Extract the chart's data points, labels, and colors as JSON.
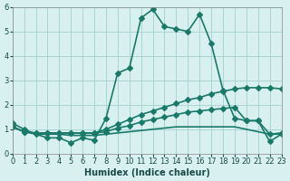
{
  "xlabel": "Humidex (Indice chaleur)",
  "ylabel": "",
  "bg_color": "#d8f0f0",
  "grid_color": "#aad4d4",
  "line_color": "#1a7a6a",
  "xlim": [
    0,
    23
  ],
  "ylim": [
    0,
    6
  ],
  "xticks": [
    0,
    1,
    2,
    3,
    4,
    5,
    6,
    7,
    8,
    9,
    10,
    11,
    12,
    13,
    14,
    15,
    16,
    17,
    18,
    19,
    20,
    21,
    22,
    23
  ],
  "yticks": [
    0,
    1,
    2,
    3,
    4,
    5,
    6
  ],
  "series": [
    {
      "x": [
        0,
        1,
        2,
        3,
        4,
        5,
        6,
        7,
        8,
        9,
        10,
        11,
        12,
        13,
        14,
        15,
        16,
        17,
        18,
        19,
        20,
        21,
        22,
        23
      ],
      "y": [
        1.25,
        1.0,
        0.8,
        0.65,
        0.65,
        0.45,
        0.65,
        0.55,
        1.45,
        3.3,
        3.5,
        5.55,
        5.9,
        5.2,
        5.1,
        5.0,
        5.7,
        4.5,
        2.6,
        1.45,
        1.35,
        1.35,
        0.5,
        0.8
      ],
      "style": "-",
      "marker": "D",
      "markersize": 3,
      "linewidth": 1.2
    },
    {
      "x": [
        0,
        1,
        2,
        3,
        4,
        5,
        6,
        7,
        8,
        9,
        10,
        11,
        12,
        13,
        14,
        15,
        16,
        17,
        18,
        19,
        20,
        21,
        22,
        23
      ],
      "y": [
        1.1,
        0.9,
        0.85,
        0.85,
        0.85,
        0.85,
        0.85,
        0.85,
        1.0,
        1.2,
        1.4,
        1.6,
        1.75,
        1.9,
        2.05,
        2.2,
        2.3,
        2.45,
        2.55,
        2.65,
        2.7,
        2.7,
        2.7,
        2.65
      ],
      "style": "-",
      "marker": "D",
      "markersize": 3,
      "linewidth": 1.2
    },
    {
      "x": [
        0,
        1,
        2,
        3,
        4,
        5,
        6,
        7,
        8,
        9,
        10,
        11,
        12,
        13,
        14,
        15,
        16,
        17,
        18,
        19,
        20,
        21,
        22,
        23
      ],
      "y": [
        1.1,
        0.9,
        0.85,
        0.85,
        0.85,
        0.85,
        0.85,
        0.85,
        0.9,
        1.05,
        1.15,
        1.3,
        1.4,
        1.5,
        1.6,
        1.7,
        1.75,
        1.8,
        1.85,
        1.9,
        1.35,
        1.35,
        0.8,
        0.85
      ],
      "style": "-",
      "marker": "D",
      "markersize": 3,
      "linewidth": 1.2
    },
    {
      "x": [
        0,
        1,
        2,
        3,
        4,
        5,
        6,
        7,
        8,
        9,
        10,
        11,
        12,
        13,
        14,
        15,
        16,
        17,
        18,
        19,
        20,
        21,
        22,
        23
      ],
      "y": [
        1.1,
        0.9,
        0.8,
        0.8,
        0.8,
        0.75,
        0.75,
        0.75,
        0.8,
        0.85,
        0.9,
        0.95,
        1.0,
        1.05,
        1.1,
        1.1,
        1.1,
        1.1,
        1.1,
        1.1,
        1.0,
        0.9,
        0.8,
        0.8
      ],
      "style": "-",
      "marker": null,
      "markersize": 0,
      "linewidth": 1.2
    }
  ]
}
